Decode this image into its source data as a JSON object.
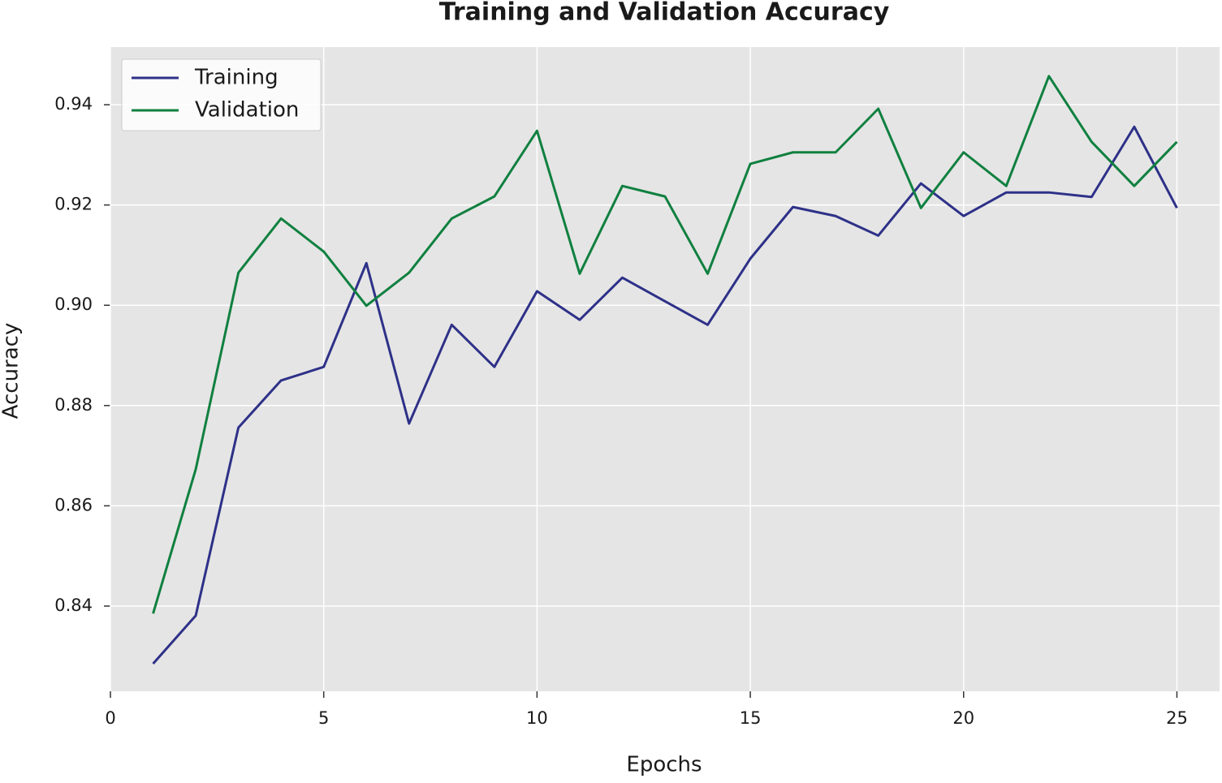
{
  "chart_data": {
    "type": "line",
    "title": "Training and Validation Accuracy",
    "x_label": "Epochs",
    "y_label": "Accuracy",
    "x": [
      1,
      2,
      3,
      4,
      5,
      6,
      7,
      8,
      9,
      10,
      11,
      12,
      13,
      14,
      15,
      16,
      17,
      18,
      19,
      20,
      21,
      22,
      23,
      24,
      25
    ],
    "series": [
      {
        "name": "Training",
        "color": "#2e3188",
        "values": [
          0.8285,
          0.8381,
          0.8756,
          0.885,
          0.8877,
          0.9084,
          0.8764,
          0.8961,
          0.8877,
          0.9028,
          0.8971,
          0.9055,
          0.9008,
          0.8961,
          0.9093,
          0.9196,
          0.9178,
          0.9139,
          0.9243,
          0.9178,
          0.9225,
          0.9225,
          0.9216,
          0.9356,
          0.9194
        ]
      },
      {
        "name": "Validation",
        "color": "#108040",
        "values": [
          0.8385,
          0.8673,
          0.9065,
          0.9173,
          0.9107,
          0.8999,
          0.9065,
          0.9173,
          0.9217,
          0.9348,
          0.9063,
          0.9238,
          0.9217,
          0.9063,
          0.9282,
          0.9305,
          0.9305,
          0.9392,
          0.9194,
          0.9305,
          0.9238,
          0.9457,
          0.9326,
          0.9238,
          0.9326
        ]
      }
    ],
    "xlim": [
      0,
      26
    ],
    "ylim": [
      0.823,
      0.9515
    ],
    "xticks": [
      0,
      5,
      10,
      15,
      20,
      25
    ],
    "yticks": [
      {
        "value": 0.84,
        "label": "0.84"
      },
      {
        "value": 0.86,
        "label": "0.86"
      },
      {
        "value": 0.88,
        "label": "0.88"
      },
      {
        "value": 0.9,
        "label": "0.90"
      },
      {
        "value": 0.92,
        "label": "0.92"
      },
      {
        "value": 0.94,
        "label": "0.94"
      }
    ],
    "grid": true,
    "legend": "upper-left"
  }
}
